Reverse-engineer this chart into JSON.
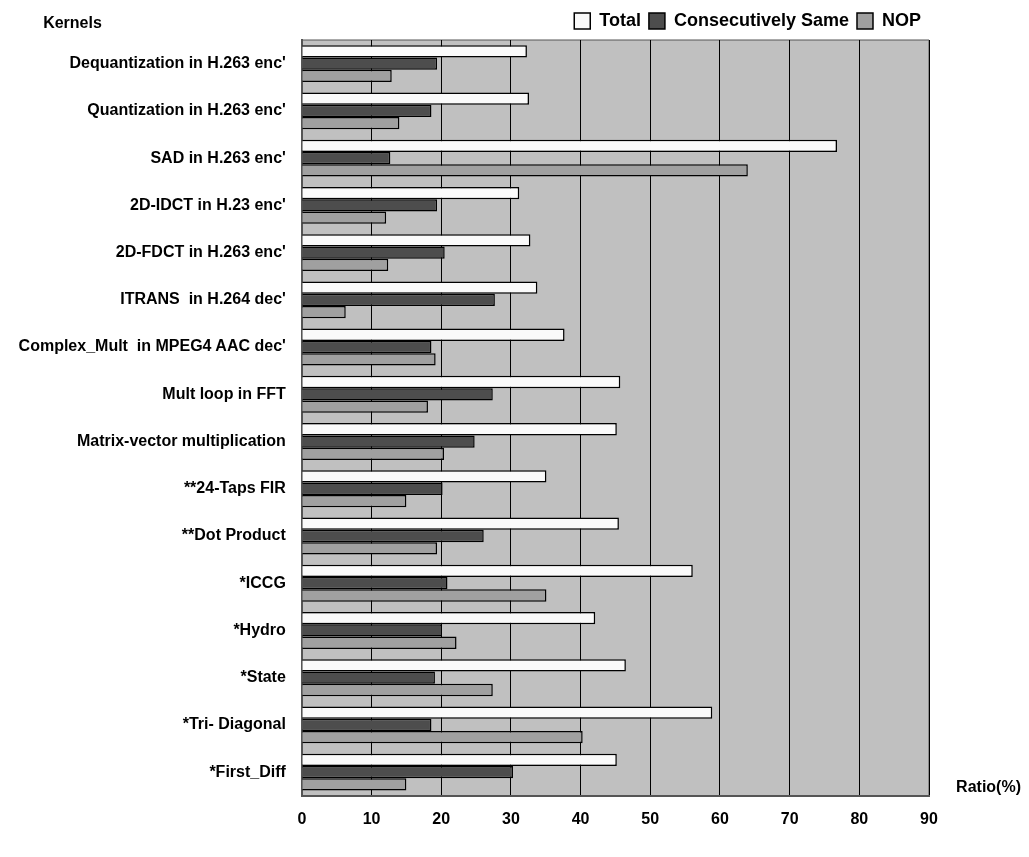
{
  "chart_data": {
    "type": "bar",
    "orientation": "horizontal",
    "xlabel": "Ratio(%)",
    "ylabel": "Kernels",
    "categories": [
      "Dequantization in H.263 enc'",
      "Quantization in H.263 enc'",
      "SAD in H.263 enc'",
      "2D-IDCT in H.23 enc'",
      "2D-FDCT in H.263 enc'",
      "ITRANS  in H.264 dec'",
      "Complex_Mult  in MPEG4 AAC dec'",
      "Mult loop in FFT",
      "Matrix-vector multiplication",
      "**24-Taps FIR",
      "**Dot Product",
      "*ICCG",
      "*Hydro",
      "*State",
      "*Tri- Diagonal",
      "*First_Diff"
    ],
    "series": [
      {
        "name": "Total",
        "color": "#fafafa",
        "values": [
          32.3,
          32.6,
          76.8,
          31.2,
          32.8,
          33.8,
          37.7,
          45.7,
          45.2,
          35.1,
          45.5,
          56.1,
          42.1,
          46.5,
          58.9,
          45.2
        ]
      },
      {
        "name": "Consecutively Same",
        "color": "#4d4d4d",
        "values": [
          19.4,
          18.6,
          12.7,
          19.4,
          20.5,
          27.7,
          18.6,
          27.4,
          24.8,
          20.2,
          26.1,
          20.9,
          20.1,
          19.1,
          18.6,
          30.3
        ]
      },
      {
        "name": "NOP",
        "color": "#a0a0a0",
        "values": [
          12.9,
          14.0,
          64.0,
          12.1,
          12.4,
          6.3,
          19.2,
          18.1,
          20.4,
          15.0,
          19.4,
          35.1,
          22.2,
          27.4,
          40.3,
          15.0
        ]
      }
    ],
    "xlim": [
      0,
      90
    ],
    "xticks": [
      0,
      10,
      20,
      30,
      40,
      50,
      60,
      70,
      80,
      90
    ],
    "grid": "x",
    "legend": "top right"
  }
}
